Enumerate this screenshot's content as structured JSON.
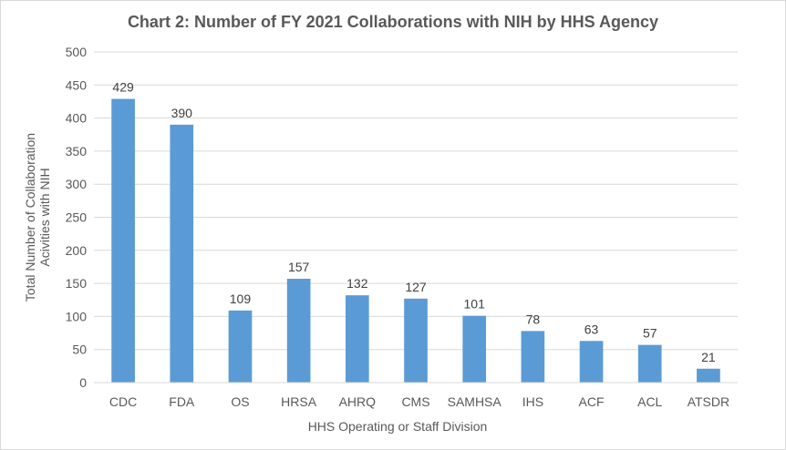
{
  "chart_data": {
    "type": "bar",
    "title": "Chart 2: Number of FY 2021 Collaborations with NIH by HHS Agency",
    "xlabel": "HHS Operating or Staff Division",
    "ylabel_lines": [
      "Total Number of Collaboration",
      "Acivities with NIH"
    ],
    "categories": [
      "CDC",
      "FDA",
      "OS",
      "HRSA",
      "AHRQ",
      "CMS",
      "SAMHSA",
      "IHS",
      "ACF",
      "ACL",
      "ATSDR"
    ],
    "values": [
      429,
      390,
      109,
      157,
      132,
      127,
      101,
      78,
      63,
      57,
      21
    ],
    "ylim": [
      0,
      500
    ],
    "yticks": [
      0,
      50,
      100,
      150,
      200,
      250,
      300,
      350,
      400,
      450,
      500
    ],
    "gridlines": true,
    "legend": "none",
    "bar_color": "#5b9bd5",
    "grid_color": "#d9d9d9"
  }
}
